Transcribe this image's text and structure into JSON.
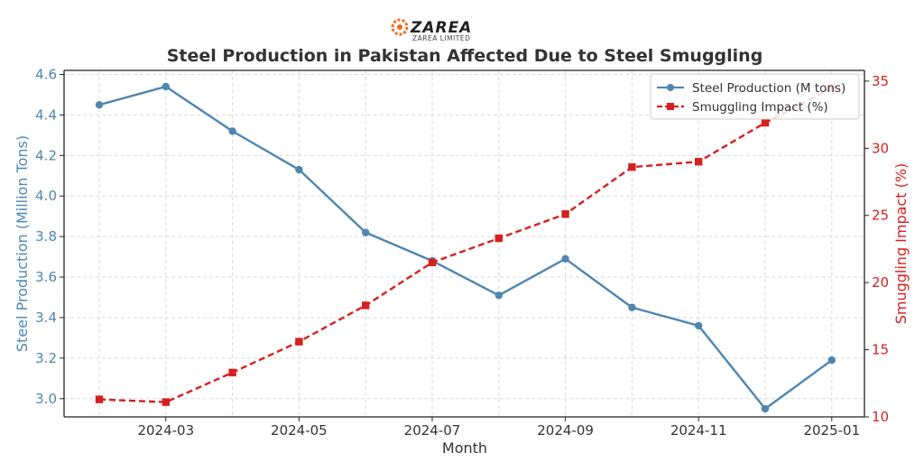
{
  "logo": {
    "name": "ZAREA",
    "subtitle": "ZAREA LIMITED"
  },
  "chart_data": {
    "type": "line",
    "title": "Steel Production in Pakistan Affected Due to Steel Smuggling",
    "xlabel": "Month",
    "ylabel_left": "Steel Production (Million Tons)",
    "ylabel_right": "Smuggling Impact (%)",
    "x": [
      "2024-02",
      "2024-03",
      "2024-04",
      "2024-05",
      "2024-06",
      "2024-07",
      "2024-08",
      "2024-09",
      "2024-10",
      "2024-11",
      "2024-12",
      "2025-01"
    ],
    "x_ticks": [
      "2024-03",
      "2024-05",
      "2024-07",
      "2024-09",
      "2024-11",
      "2025-01"
    ],
    "ylim_left": [
      2.91,
      4.62
    ],
    "yticks_left": [
      "3.0",
      "3.2",
      "3.4",
      "3.6",
      "3.8",
      "4.0",
      "4.2",
      "4.4",
      "4.6"
    ],
    "ylim_right": [
      10,
      35.8
    ],
    "yticks_right": [
      "10",
      "15",
      "20",
      "25",
      "30",
      "35"
    ],
    "series": [
      {
        "name": "Steel Production (M tons)",
        "axis": "left",
        "color": "#4f86b0",
        "marker": "circle",
        "linestyle": "solid",
        "values": [
          4.45,
          4.54,
          4.32,
          4.13,
          3.82,
          3.68,
          3.51,
          3.69,
          3.45,
          3.36,
          2.95,
          3.19
        ]
      },
      {
        "name": "Smuggling Impact (%)",
        "axis": "right",
        "color": "#d62020",
        "marker": "square",
        "linestyle": "dashed",
        "values": [
          11.3,
          11.1,
          13.3,
          15.6,
          18.3,
          21.5,
          23.3,
          25.1,
          28.6,
          29.0,
          31.9,
          34.5
        ]
      }
    ],
    "legend_position": "top-right",
    "grid": true
  }
}
